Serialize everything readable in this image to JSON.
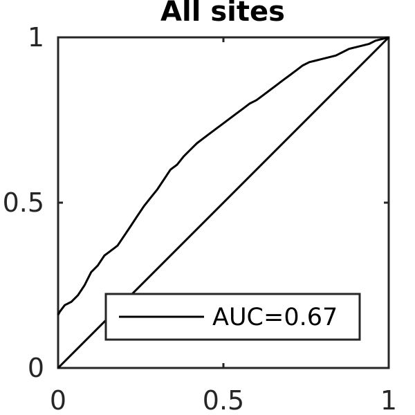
{
  "chart_data": {
    "type": "line",
    "title": "All sites",
    "xlabel": "",
    "ylabel": "",
    "xlim": [
      0,
      1
    ],
    "ylim": [
      0,
      1
    ],
    "xticks": [
      0,
      0.5,
      1
    ],
    "yticks": [
      0,
      0.5,
      1
    ],
    "xtick_labels": [
      "0",
      "0.5",
      "1"
    ],
    "ytick_labels": [
      "0",
      "0.5",
      "1"
    ],
    "grid": false,
    "legend": {
      "location": "bottom-right",
      "entries": [
        "AUC=0.67"
      ]
    },
    "series": [
      {
        "name": "AUC=0.67",
        "color": "#000000",
        "x": [
          0,
          0.005,
          0.02,
          0.04,
          0.06,
          0.08,
          0.09,
          0.1,
          0.12,
          0.14,
          0.16,
          0.18,
          0.2,
          0.22,
          0.24,
          0.26,
          0.28,
          0.3,
          0.32,
          0.34,
          0.36,
          0.38,
          0.4,
          0.42,
          0.44,
          0.46,
          0.48,
          0.5,
          0.52,
          0.54,
          0.56,
          0.58,
          0.6,
          0.62,
          0.64,
          0.66,
          0.68,
          0.7,
          0.72,
          0.74,
          0.76,
          0.78,
          0.8,
          0.82,
          0.84,
          0.86,
          0.88,
          0.9,
          0.92,
          0.94,
          0.96,
          0.98,
          1
        ],
        "y": [
          0.16,
          0.17,
          0.19,
          0.2,
          0.22,
          0.25,
          0.27,
          0.29,
          0.31,
          0.34,
          0.355,
          0.37,
          0.4,
          0.43,
          0.46,
          0.49,
          0.515,
          0.54,
          0.57,
          0.6,
          0.615,
          0.64,
          0.66,
          0.68,
          0.695,
          0.71,
          0.725,
          0.74,
          0.755,
          0.77,
          0.785,
          0.8,
          0.81,
          0.825,
          0.84,
          0.855,
          0.87,
          0.885,
          0.9,
          0.915,
          0.925,
          0.93,
          0.935,
          0.94,
          0.945,
          0.955,
          0.965,
          0.97,
          0.975,
          0.98,
          0.99,
          0.995,
          1.0
        ]
      },
      {
        "name": "",
        "color": "#000000",
        "x": [
          0,
          1
        ],
        "y": [
          0,
          1
        ]
      }
    ]
  }
}
